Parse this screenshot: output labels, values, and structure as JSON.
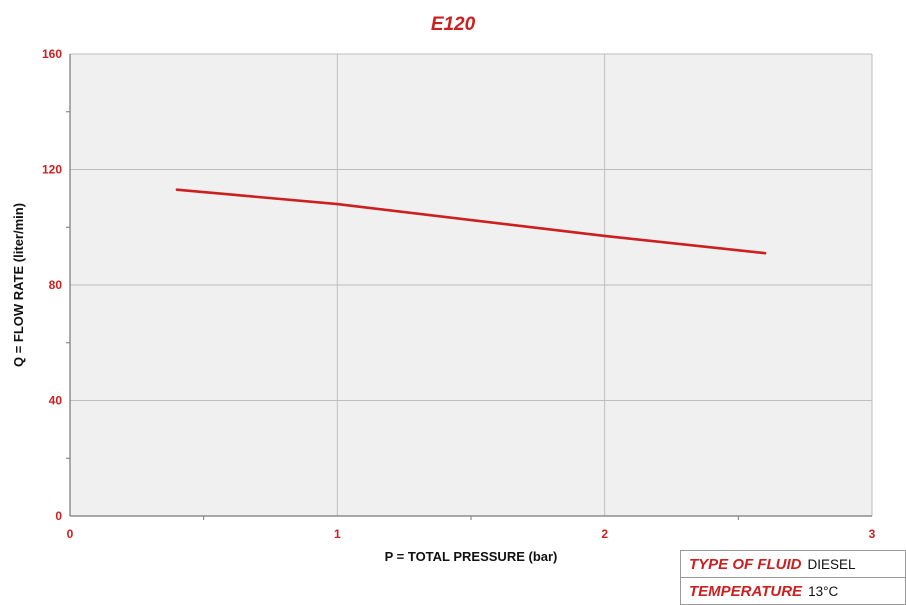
{
  "chart_data": {
    "type": "line",
    "title": "E120",
    "xlabel": "P = TOTAL PRESSURE (bar)",
    "ylabel": "Q = FLOW RATE (liter/min)",
    "xlim": [
      0,
      3
    ],
    "ylim": [
      0,
      160
    ],
    "xticks": [
      "0",
      "1",
      "2",
      "3"
    ],
    "yticks": [
      "0",
      "40",
      "80",
      "120",
      "160"
    ],
    "grid": true,
    "series": [
      {
        "x": [
          0.4,
          1.0,
          2.0,
          2.6
        ],
        "y": [
          113,
          108,
          97,
          91
        ]
      }
    ]
  },
  "colors": {
    "accent": "#cc1f1f",
    "plot_background": "#f0f0f0",
    "grid": "#bdbdbd",
    "axis": "#777777",
    "text": "#111111"
  },
  "info_table": {
    "rows": [
      {
        "label": "TYPE OF FLUID",
        "value": "DIESEL"
      },
      {
        "label": "TEMPERATURE",
        "value": "13°C"
      }
    ]
  }
}
